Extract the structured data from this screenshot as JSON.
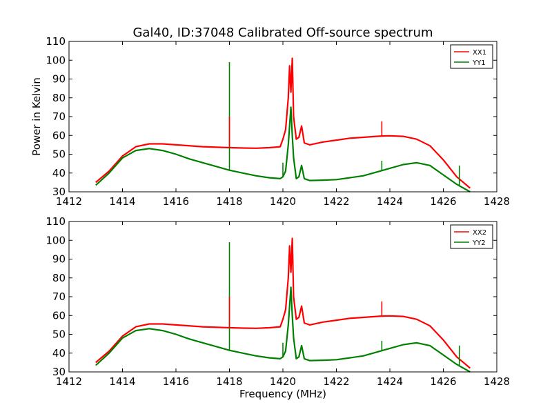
{
  "figure": {
    "title": "Gal40, ID:37048 Calibrated Off-source spectrum"
  },
  "chart_data": [
    {
      "type": "line",
      "title": "Gal40, ID:37048 Calibrated Off-source spectrum",
      "xlabel": "",
      "ylabel": "Power in Kelvin",
      "xlim": [
        1412,
        1428
      ],
      "ylim": [
        30,
        110
      ],
      "xticks": [
        1412,
        1414,
        1416,
        1418,
        1420,
        1422,
        1424,
        1426,
        1428
      ],
      "yticks": [
        30,
        40,
        50,
        60,
        70,
        80,
        90,
        100,
        110
      ],
      "grid": false,
      "legend_position": "top-right",
      "series": [
        {
          "name": "XX1",
          "color": "#ff0000",
          "x": [
            1413.0,
            1413.5,
            1414.0,
            1414.5,
            1415.0,
            1415.5,
            1416.0,
            1417.0,
            1418.0,
            1418.5,
            1419.0,
            1419.5,
            1419.9,
            1420.0,
            1420.1,
            1420.2,
            1420.25,
            1420.3,
            1420.35,
            1420.4,
            1420.5,
            1420.6,
            1420.7,
            1420.8,
            1421.0,
            1421.5,
            1422.0,
            1422.5,
            1423.0,
            1423.5,
            1423.7,
            1424.0,
            1424.5,
            1425.0,
            1425.5,
            1426.0,
            1426.5,
            1427.0
          ],
          "y": [
            35,
            41,
            49,
            54,
            55.5,
            55.5,
            55,
            54,
            53.5,
            53.3,
            53.2,
            53.5,
            54,
            58,
            63,
            80,
            97,
            83,
            101,
            70,
            58,
            59,
            65,
            56,
            55,
            56.5,
            57.5,
            58.5,
            59,
            59.5,
            59.7,
            59.8,
            59.5,
            58,
            54.5,
            47,
            38,
            32
          ]
        },
        {
          "name": "YY1",
          "color": "#008000",
          "x": [
            1413.0,
            1413.5,
            1414.0,
            1414.5,
            1415.0,
            1415.5,
            1416.0,
            1416.5,
            1417.0,
            1417.5,
            1418.0,
            1418.5,
            1419.0,
            1419.5,
            1419.9,
            1420.0,
            1420.1,
            1420.2,
            1420.3,
            1420.35,
            1420.4,
            1420.5,
            1420.6,
            1420.7,
            1420.8,
            1421.0,
            1421.5,
            1422.0,
            1422.5,
            1423.0,
            1423.5,
            1424.0,
            1424.5,
            1425.0,
            1425.5,
            1426.0,
            1426.5,
            1427.0
          ],
          "y": [
            33.5,
            40,
            48,
            52,
            53,
            52,
            50,
            47.5,
            45.5,
            43.5,
            41.5,
            40,
            38.5,
            37.5,
            37,
            38,
            41,
            55,
            75,
            60,
            48,
            37,
            38,
            44,
            37,
            36,
            36.2,
            36.5,
            37.5,
            38.5,
            40.5,
            42.5,
            44.5,
            45.5,
            44,
            39,
            34,
            30
          ]
        }
      ],
      "spikes": [
        {
          "series": "YY1",
          "x": 1418.0,
          "y": 99
        },
        {
          "series": "XX1",
          "x": 1418.0,
          "y": 70
        },
        {
          "series": "YY1",
          "x": 1420.0,
          "y": 45.5
        },
        {
          "series": "XX1",
          "x": 1423.7,
          "y": 67.5
        },
        {
          "series": "YY1",
          "x": 1423.7,
          "y": 46.5
        },
        {
          "series": "YY1",
          "x": 1426.6,
          "y": 44
        }
      ]
    },
    {
      "type": "line",
      "title": "",
      "xlabel": "Frequency (MHz)",
      "ylabel": "",
      "xlim": [
        1412,
        1428
      ],
      "ylim": [
        30,
        110
      ],
      "xticks": [
        1412,
        1414,
        1416,
        1418,
        1420,
        1422,
        1424,
        1426,
        1428
      ],
      "yticks": [
        30,
        40,
        50,
        60,
        70,
        80,
        90,
        100,
        110
      ],
      "grid": false,
      "legend_position": "top-right",
      "series": [
        {
          "name": "XX2",
          "color": "#ff0000",
          "x": [
            1413.0,
            1413.5,
            1414.0,
            1414.5,
            1415.0,
            1415.5,
            1416.0,
            1417.0,
            1418.0,
            1418.5,
            1419.0,
            1419.5,
            1419.9,
            1420.0,
            1420.1,
            1420.2,
            1420.25,
            1420.3,
            1420.35,
            1420.4,
            1420.5,
            1420.6,
            1420.7,
            1420.8,
            1421.0,
            1421.5,
            1422.0,
            1422.5,
            1423.0,
            1423.5,
            1423.7,
            1424.0,
            1424.5,
            1425.0,
            1425.5,
            1426.0,
            1426.5,
            1427.0
          ],
          "y": [
            35,
            41,
            49,
            54,
            55.5,
            55.5,
            55,
            54,
            53.5,
            53.3,
            53.2,
            53.5,
            54,
            58,
            63,
            80,
            97,
            83,
            101,
            70,
            58,
            59,
            65,
            56,
            55,
            56.5,
            57.5,
            58.5,
            59,
            59.5,
            59.7,
            59.8,
            59.5,
            58,
            54.5,
            47,
            38,
            32
          ]
        },
        {
          "name": "YY2",
          "color": "#008000",
          "x": [
            1413.0,
            1413.5,
            1414.0,
            1414.5,
            1415.0,
            1415.5,
            1416.0,
            1416.5,
            1417.0,
            1417.5,
            1418.0,
            1418.5,
            1419.0,
            1419.5,
            1419.9,
            1420.0,
            1420.1,
            1420.2,
            1420.3,
            1420.35,
            1420.4,
            1420.5,
            1420.6,
            1420.7,
            1420.8,
            1421.0,
            1421.5,
            1422.0,
            1422.5,
            1423.0,
            1423.5,
            1424.0,
            1424.5,
            1425.0,
            1425.5,
            1426.0,
            1426.5,
            1427.0
          ],
          "y": [
            33.5,
            40,
            48,
            52,
            53,
            52,
            50,
            47.5,
            45.5,
            43.5,
            41.5,
            40,
            38.5,
            37.5,
            37,
            38,
            41,
            55,
            75,
            60,
            48,
            37,
            38,
            44,
            37,
            36,
            36.2,
            36.5,
            37.5,
            38.5,
            40.5,
            42.5,
            44.5,
            45.5,
            44,
            39,
            34,
            30
          ]
        }
      ],
      "spikes": [
        {
          "series": "YY2",
          "x": 1418.0,
          "y": 99
        },
        {
          "series": "XX2",
          "x": 1418.0,
          "y": 70
        },
        {
          "series": "YY2",
          "x": 1420.0,
          "y": 45.5
        },
        {
          "series": "XX2",
          "x": 1423.7,
          "y": 67.5
        },
        {
          "series": "YY2",
          "x": 1423.7,
          "y": 46.5
        },
        {
          "series": "YY2",
          "x": 1426.6,
          "y": 44
        }
      ]
    }
  ]
}
